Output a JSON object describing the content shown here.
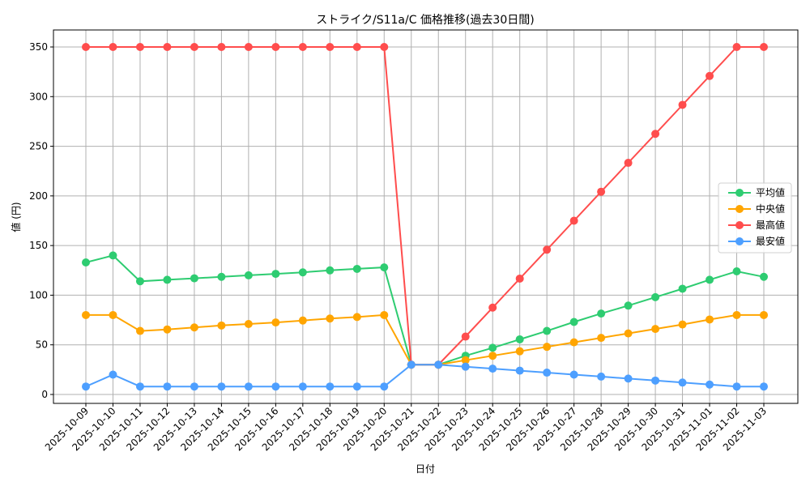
{
  "chart_data": {
    "type": "line",
    "title": "ストライク/S11a/C 価格推移(過去30日間)",
    "xlabel": "日付",
    "ylabel": "値 (円)",
    "ylim": [
      -9,
      367
    ],
    "yticks": [
      0,
      50,
      100,
      150,
      200,
      250,
      300,
      350
    ],
    "grid": true,
    "legend_position": "center right",
    "x": [
      "2025-10-09",
      "2025-10-10",
      "2025-10-11",
      "2025-10-12",
      "2025-10-13",
      "2025-10-14",
      "2025-10-15",
      "2025-10-16",
      "2025-10-17",
      "2025-10-18",
      "2025-10-19",
      "2025-10-20",
      "2025-10-21",
      "2025-10-22",
      "2025-10-23",
      "2025-10-24",
      "2025-10-25",
      "2025-10-26",
      "2025-10-27",
      "2025-10-28",
      "2025-10-29",
      "2025-10-30",
      "2025-10-31",
      "2025-11-01",
      "2025-11-02",
      "2025-11-03"
    ],
    "series": [
      {
        "name": "平均値",
        "color": "#2ecc71",
        "values": [
          133,
          140,
          114,
          115.5,
          117,
          118.5,
          120,
          121.5,
          123,
          125,
          126.5,
          128,
          30,
          30,
          39,
          47,
          55.5,
          64,
          73,
          81.5,
          89.5,
          98,
          106.5,
          115.5,
          124,
          118.5
        ]
      },
      {
        "name": "中央値",
        "color": "#ffa500",
        "values": [
          80,
          80,
          64,
          65.5,
          67.5,
          69.5,
          71,
          72.5,
          74.5,
          76.5,
          78,
          80,
          30,
          30,
          34.5,
          39,
          43.5,
          48,
          52.5,
          57,
          61.5,
          66,
          70.5,
          75.5,
          80,
          80
        ]
      },
      {
        "name": "最高値",
        "color": "#ff4d4d",
        "values": [
          350,
          350,
          350,
          350,
          350,
          350,
          350,
          350,
          350,
          350,
          350,
          350,
          30,
          30,
          58.3,
          87.5,
          116.7,
          145.8,
          175,
          204.2,
          233.3,
          262.5,
          291.7,
          320.8,
          350,
          350
        ]
      },
      {
        "name": "最安値",
        "color": "#4d9fff",
        "values": [
          8,
          20,
          8,
          8,
          8,
          8,
          8,
          8,
          8,
          8,
          8,
          8,
          30,
          30,
          28,
          26,
          24,
          22,
          20,
          18,
          16,
          14,
          12,
          10,
          8,
          8
        ]
      }
    ]
  }
}
